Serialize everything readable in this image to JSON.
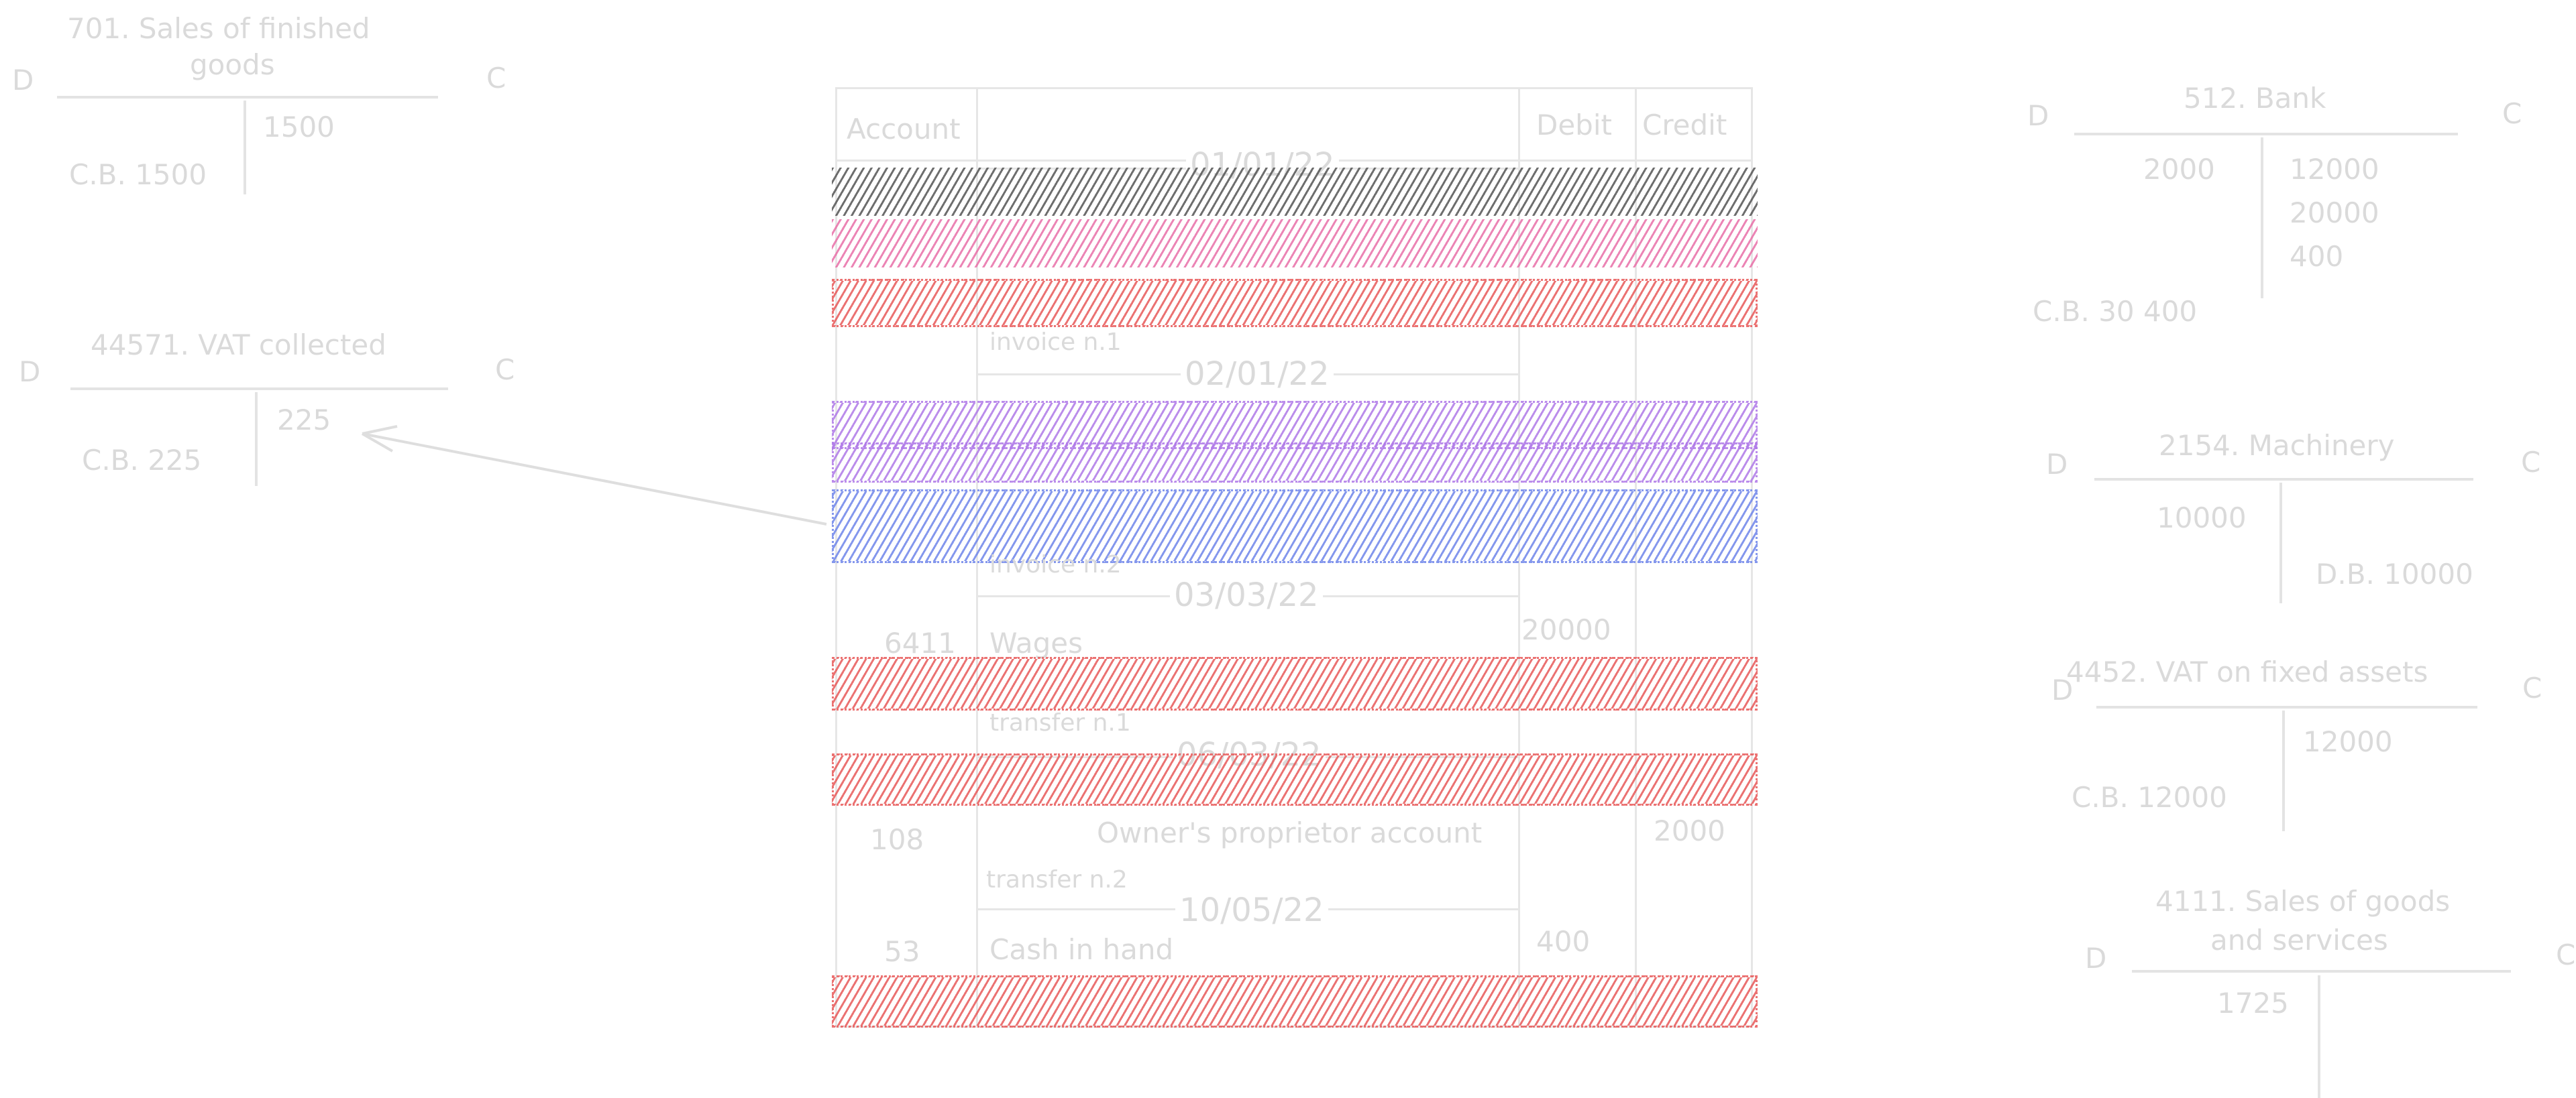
{
  "colors": {
    "band_dark": "#555555",
    "band_pink": "#e86fa8",
    "band_red": "#e85a5a",
    "band_purple": "#b07ae8",
    "band_blue": "#6f86ea",
    "ink": "#dadada"
  },
  "t_accounts": {
    "sales_finished_goods": {
      "title_line1": "701. Sales of finished",
      "title_line2": "goods",
      "debit": "D",
      "credit": "C",
      "credit_value": "1500",
      "balance": "C.B. 1500"
    },
    "vat_collected": {
      "title": "44571. VAT collected",
      "debit": "D",
      "credit": "C",
      "credit_value": "225",
      "balance": "C.B. 225"
    },
    "bank": {
      "title": "512. Bank",
      "debit": "D",
      "credit": "C",
      "debit_value": "2000",
      "credit_values": [
        "12000",
        "20000",
        "400"
      ],
      "balance": "C.B. 30 400"
    },
    "machinery": {
      "title": "2154. Machinery",
      "debit": "D",
      "credit": "C",
      "debit_value": "10000",
      "balance": "D.B. 10000"
    },
    "vat_fixed_assets": {
      "title": "4452. VAT on fixed assets",
      "debit": "D",
      "credit": "C",
      "credit_value": "12000",
      "balance": "C.B. 12000"
    },
    "sales_goods_services": {
      "title_line1": "4111. Sales of goods",
      "title_line2": "and services",
      "debit": "D",
      "credit": "C",
      "debit_value": "1725"
    }
  },
  "journal": {
    "header": {
      "account": "Account",
      "debit": "Debit",
      "credit": "Credit"
    },
    "dates": [
      "01/01/22",
      "02/01/22",
      "03/03/22",
      "06/03/22",
      "10/05/22"
    ],
    "notes": [
      "invoice n.1",
      "invoice n.2",
      "transfer n.1",
      "transfer n.2"
    ],
    "visible_rows": [
      {
        "account": "6411",
        "label": "Wages",
        "debit": "20000",
        "credit": ""
      },
      {
        "account": "108",
        "label": "Owner's proprietor account",
        "debit": "",
        "credit": "2000"
      },
      {
        "account": "53",
        "label": "Cash in hand",
        "debit": "400",
        "credit": ""
      }
    ]
  }
}
